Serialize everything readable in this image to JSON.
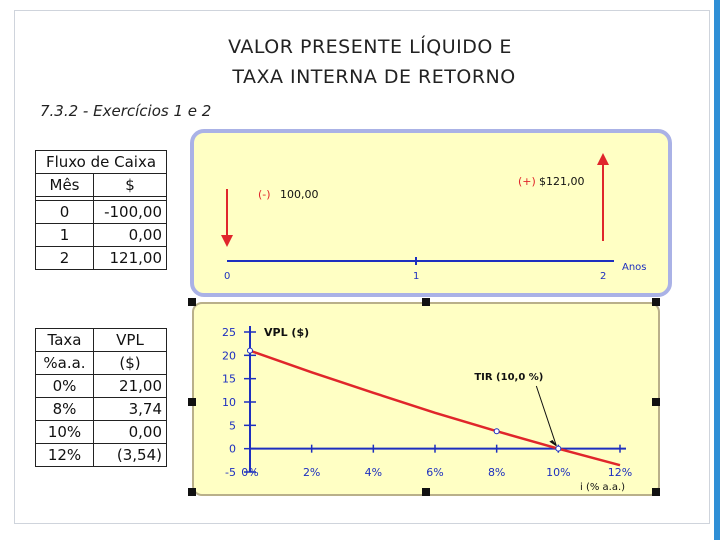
{
  "title": {
    "line1": "VALOR PRESENTE LÍQUIDO E",
    "line2": "TAXA INTERNA DE RETORNO"
  },
  "subtitle": "7.3.2 - Exercícios 1 e 2",
  "cash_flow_table": {
    "header1": "Fluxo de Caixa",
    "header_month": "Mês",
    "header_value": "$",
    "rows": [
      {
        "month": "0",
        "value": "-100,00"
      },
      {
        "month": "1",
        "value": "0,00"
      },
      {
        "month": "2",
        "value": "121,00"
      }
    ]
  },
  "npv_table": {
    "header_rate_1": "Taxa",
    "header_rate_2": "%a.a.",
    "header_npv_1": "VPL",
    "header_npv_2": "($)",
    "rows": [
      {
        "rate": "0%",
        "npv": "21,00"
      },
      {
        "rate": "8%",
        "npv": "3,74"
      },
      {
        "rate": "10%",
        "npv": "0,00"
      },
      {
        "rate": "12%",
        "npv": "(3,54)"
      }
    ]
  },
  "timeline": {
    "outflow_sign": "(-)",
    "outflow_value": "100,00",
    "inflow_sign": "(+)",
    "inflow_value": "$121,00",
    "ticks": [
      "0",
      "1",
      "2"
    ],
    "axis_label": "Anos",
    "colors": {
      "arrow": "#e0262b",
      "axis": "#1d2fbf",
      "sign": "#e0262b"
    }
  },
  "chart_data": {
    "type": "line",
    "ylabel": "VPL ($)",
    "xlabel": "i (% a.a.)",
    "annotation": "TIR (10,0 %)",
    "annotation_point": [
      10,
      0
    ],
    "x_ticks": [
      "0%",
      "2%",
      "4%",
      "6%",
      "8%",
      "10%",
      "12%"
    ],
    "y_ticks": [
      "25",
      "20",
      "15",
      "10",
      "5",
      "0",
      "-5"
    ],
    "xlim": [
      0,
      12
    ],
    "ylim": [
      -5,
      25
    ],
    "series": [
      {
        "x": [
          0,
          2,
          4,
          6,
          8,
          10,
          12
        ],
        "values": [
          21.0,
          16.37,
          11.97,
          7.69,
          3.74,
          0.0,
          -3.54
        ],
        "color": "#e0262b"
      }
    ],
    "markers": [
      {
        "x": 0,
        "y": 21.0
      },
      {
        "x": 8,
        "y": 3.74
      },
      {
        "x": 10,
        "y": 0.0
      }
    ],
    "axis_color": "#1d2fbf",
    "grid": false
  }
}
